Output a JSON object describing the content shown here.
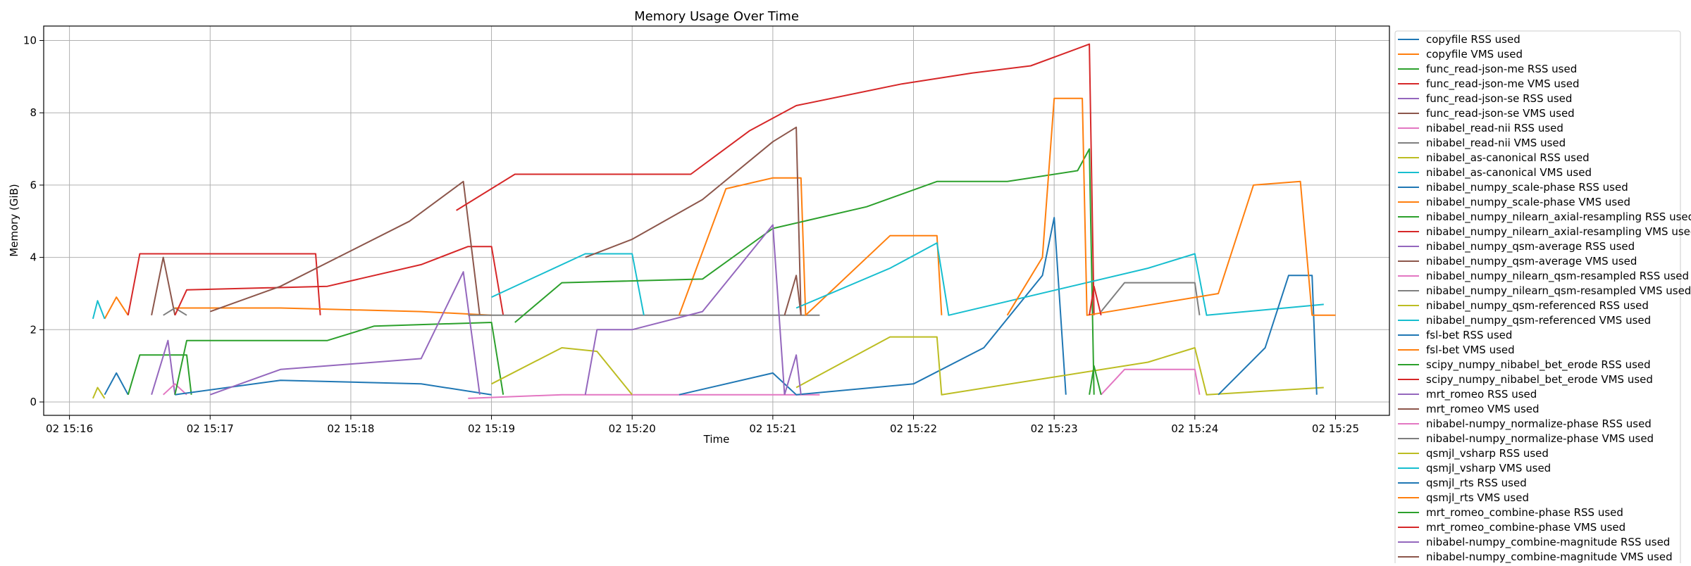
{
  "chart_data": {
    "type": "line",
    "title": "Memory Usage Over Time",
    "xlabel": "Time",
    "ylabel": "Memory (GiB)",
    "xlim": [
      "15:15:49",
      "15:25:23"
    ],
    "ylim": [
      -0.37,
      10.4
    ],
    "xticks": [
      "15:16",
      "15:17",
      "15:18",
      "15:19",
      "15:20",
      "15:21",
      "15:22",
      "15:23",
      "15:24",
      "15:25"
    ],
    "xtick_labels": [
      "02 15:16",
      "02 15:17",
      "02 15:18",
      "02 15:19",
      "02 15:20",
      "02 15:21",
      "02 15:22",
      "02 15:23",
      "02 15:24",
      "02 15:25"
    ],
    "yticks": [
      0,
      2,
      4,
      6,
      8,
      10
    ],
    "ytick_labels": [
      "0",
      "2",
      "4",
      "6",
      "8",
      "10"
    ],
    "grid": true,
    "legend_placement": "outside-right",
    "colors": [
      "#1f77b4",
      "#ff7f0e",
      "#2ca02c",
      "#d62728",
      "#9467bd",
      "#8c564b",
      "#e377c2",
      "#7f7f7f",
      "#bcbd22",
      "#17becf"
    ],
    "series": [
      {
        "name": "copyfile RSS used",
        "points": [
          [
            "15:16:15",
            0.2
          ],
          [
            "15:16:20",
            0.8
          ],
          [
            "15:16:25",
            0.2
          ]
        ]
      },
      {
        "name": "copyfile VMS used",
        "points": [
          [
            "15:16:15",
            2.3
          ],
          [
            "15:16:20",
            2.9
          ],
          [
            "15:16:25",
            2.4
          ]
        ]
      },
      {
        "name": "func_read-json-me RSS used",
        "points": [
          [
            "15:16:25",
            0.2
          ],
          [
            "15:16:30",
            1.3
          ],
          [
            "15:16:50",
            1.3
          ],
          [
            "15:16:52",
            0.2
          ]
        ]
      },
      {
        "name": "func_read-json-me VMS used",
        "points": [
          [
            "15:16:25",
            2.4
          ],
          [
            "15:16:30",
            4.1
          ],
          [
            "15:17:45",
            4.1
          ],
          [
            "15:17:47",
            2.4
          ]
        ]
      },
      {
        "name": "func_read-json-se RSS used",
        "points": [
          [
            "15:16:35",
            0.2
          ],
          [
            "15:16:42",
            1.7
          ],
          [
            "15:16:45",
            0.2
          ]
        ]
      },
      {
        "name": "func_read-json-se VMS used",
        "points": [
          [
            "15:16:35",
            2.4
          ],
          [
            "15:16:40",
            4.0
          ],
          [
            "15:16:45",
            2.4
          ]
        ]
      },
      {
        "name": "nibabel_read-nii RSS used",
        "points": [
          [
            "15:16:40",
            0.2
          ],
          [
            "15:16:45",
            0.5
          ],
          [
            "15:16:50",
            0.2
          ]
        ]
      },
      {
        "name": "nibabel_read-nii VMS used",
        "points": [
          [
            "15:16:40",
            2.4
          ],
          [
            "15:16:45",
            2.6
          ],
          [
            "15:16:50",
            2.4
          ]
        ]
      },
      {
        "name": "nibabel_as-canonical RSS used",
        "points": [
          [
            "15:16:10",
            0.1
          ],
          [
            "15:16:12",
            0.4
          ],
          [
            "15:16:15",
            0.1
          ]
        ]
      },
      {
        "name": "nibabel_as-canonical VMS used",
        "points": [
          [
            "15:16:10",
            2.3
          ],
          [
            "15:16:12",
            2.8
          ],
          [
            "15:16:15",
            2.3
          ]
        ]
      },
      {
        "name": "nibabel_numpy_scale-phase RSS used",
        "points": [
          [
            "15:16:45",
            0.2
          ],
          [
            "15:17:30",
            0.6
          ],
          [
            "15:18:30",
            0.5
          ],
          [
            "15:19:00",
            0.2
          ]
        ]
      },
      {
        "name": "nibabel_numpy_scale-phase VMS used",
        "points": [
          [
            "15:16:45",
            2.6
          ],
          [
            "15:17:30",
            2.6
          ],
          [
            "15:18:30",
            2.5
          ],
          [
            "15:19:00",
            2.4
          ]
        ]
      },
      {
        "name": "nibabel_numpy_nilearn_axial-resampling RSS used",
        "points": [
          [
            "15:16:45",
            0.2
          ],
          [
            "15:16:50",
            1.7
          ],
          [
            "15:17:50",
            1.7
          ],
          [
            "15:18:10",
            2.1
          ],
          [
            "15:19:00",
            2.2
          ],
          [
            "15:19:05",
            0.2
          ]
        ]
      },
      {
        "name": "nibabel_numpy_nilearn_axial-resampling VMS used",
        "points": [
          [
            "15:16:45",
            2.4
          ],
          [
            "15:16:50",
            3.1
          ],
          [
            "15:17:50",
            3.2
          ],
          [
            "15:18:30",
            3.8
          ],
          [
            "15:18:50",
            4.3
          ],
          [
            "15:19:00",
            4.3
          ],
          [
            "15:19:05",
            2.4
          ]
        ]
      },
      {
        "name": "nibabel_numpy_qsm-average RSS used",
        "points": [
          [
            "15:17:00",
            0.2
          ],
          [
            "15:17:30",
            0.9
          ],
          [
            "15:18:30",
            1.2
          ],
          [
            "15:18:48",
            3.6
          ],
          [
            "15:18:55",
            0.2
          ]
        ]
      },
      {
        "name": "nibabel_numpy_qsm-average VMS used",
        "points": [
          [
            "15:17:00",
            2.5
          ],
          [
            "15:17:30",
            3.2
          ],
          [
            "15:18:25",
            5.0
          ],
          [
            "15:18:48",
            6.1
          ],
          [
            "15:18:55",
            2.4
          ]
        ]
      },
      {
        "name": "nibabel_numpy_nilearn_qsm-resampled RSS used",
        "points": [
          [
            "15:18:50",
            0.1
          ],
          [
            "15:19:30",
            0.2
          ],
          [
            "15:21:20",
            0.2
          ]
        ]
      },
      {
        "name": "nibabel_numpy_nilearn_qsm-resampled VMS used",
        "points": [
          [
            "15:18:50",
            2.4
          ],
          [
            "15:21:20",
            2.4
          ]
        ]
      },
      {
        "name": "nibabel_numpy_qsm-referenced RSS used",
        "points": [
          [
            "15:19:00",
            0.5
          ],
          [
            "15:19:30",
            1.5
          ],
          [
            "15:19:45",
            1.4
          ],
          [
            "15:20:00",
            0.2
          ]
        ]
      },
      {
        "name": "nibabel_numpy_qsm-referenced VMS used",
        "points": [
          [
            "15:19:00",
            2.9
          ],
          [
            "15:19:40",
            4.1
          ],
          [
            "15:20:00",
            4.1
          ],
          [
            "15:20:05",
            2.4
          ]
        ]
      },
      {
        "name": "fsl-bet RSS used",
        "points": [
          [
            "15:20:20",
            0.2
          ],
          [
            "15:21:00",
            0.8
          ],
          [
            "15:21:10",
            0.2
          ],
          [
            "15:22:00",
            0.5
          ],
          [
            "15:22:30",
            1.5
          ],
          [
            "15:22:55",
            3.5
          ],
          [
            "15:23:00",
            5.1
          ],
          [
            "15:23:05",
            0.2
          ]
        ]
      },
      {
        "name": "fsl-bet VMS used",
        "points": [
          [
            "15:20:20",
            2.4
          ],
          [
            "15:20:40",
            5.9
          ],
          [
            "15:21:00",
            6.2
          ],
          [
            "15:21:12",
            6.2
          ],
          [
            "15:21:14",
            2.4
          ],
          [
            "15:21:50",
            4.6
          ],
          [
            "15:22:10",
            4.6
          ],
          [
            "15:22:12",
            2.4
          ]
        ]
      },
      {
        "name": "scipy_numpy_nibabel_bet_erode RSS used",
        "points": [
          [
            "15:19:10",
            2.2
          ],
          [
            "15:19:30",
            3.3
          ],
          [
            "15:20:30",
            3.4
          ],
          [
            "15:21:00",
            4.8
          ],
          [
            "15:21:40",
            5.4
          ],
          [
            "15:22:10",
            6.1
          ],
          [
            "15:22:40",
            6.1
          ],
          [
            "15:23:10",
            6.4
          ],
          [
            "15:23:15",
            7.0
          ],
          [
            "15:23:17",
            0.2
          ]
        ]
      },
      {
        "name": "scipy_numpy_nibabel_bet_erode VMS used",
        "points": [
          [
            "15:18:45",
            5.3
          ],
          [
            "15:19:10",
            6.3
          ],
          [
            "15:20:25",
            6.3
          ],
          [
            "15:20:50",
            7.5
          ],
          [
            "15:21:10",
            8.2
          ],
          [
            "15:21:55",
            8.8
          ],
          [
            "15:22:25",
            9.1
          ],
          [
            "15:22:50",
            9.3
          ],
          [
            "15:23:15",
            9.9
          ],
          [
            "15:23:17",
            2.4
          ]
        ]
      },
      {
        "name": "mrt_romeo RSS used",
        "points": [
          [
            "15:19:40",
            0.2
          ],
          [
            "15:19:45",
            2.0
          ],
          [
            "15:20:00",
            2.0
          ],
          [
            "15:20:30",
            2.5
          ],
          [
            "15:21:00",
            4.9
          ],
          [
            "15:21:05",
            0.2
          ]
        ]
      },
      {
        "name": "mrt_romeo VMS used",
        "points": [
          [
            "15:19:40",
            4.0
          ],
          [
            "15:20:00",
            4.5
          ],
          [
            "15:20:30",
            5.6
          ],
          [
            "15:21:00",
            7.2
          ],
          [
            "15:21:10",
            7.6
          ],
          [
            "15:21:12",
            2.4
          ]
        ]
      },
      {
        "name": "nibabel-numpy_normalize-phase RSS used",
        "points": [
          [
            "15:23:20",
            0.2
          ],
          [
            "15:23:30",
            0.9
          ],
          [
            "15:24:00",
            0.9
          ],
          [
            "15:24:02",
            0.2
          ]
        ]
      },
      {
        "name": "nibabel-numpy_normalize-phase VMS used",
        "points": [
          [
            "15:23:20",
            2.5
          ],
          [
            "15:23:30",
            3.3
          ],
          [
            "15:24:00",
            3.3
          ],
          [
            "15:24:02",
            2.4
          ]
        ]
      },
      {
        "name": "qsmjl_vsharp RSS used",
        "points": [
          [
            "15:21:10",
            0.4
          ],
          [
            "15:21:30",
            1.1
          ],
          [
            "15:21:50",
            1.8
          ],
          [
            "15:22:10",
            1.8
          ],
          [
            "15:22:12",
            0.2
          ],
          [
            "15:23:40",
            1.1
          ],
          [
            "15:24:00",
            1.5
          ],
          [
            "15:24:05",
            0.2
          ],
          [
            "15:24:55",
            0.4
          ]
        ]
      },
      {
        "name": "qsmjl_vsharp VMS used",
        "points": [
          [
            "15:21:10",
            2.6
          ],
          [
            "15:21:50",
            3.7
          ],
          [
            "15:22:10",
            4.4
          ],
          [
            "15:22:15",
            2.4
          ],
          [
            "15:23:40",
            3.7
          ],
          [
            "15:24:00",
            4.1
          ],
          [
            "15:24:05",
            2.4
          ],
          [
            "15:24:55",
            2.7
          ]
        ]
      },
      {
        "name": "qsmjl_rts RSS used",
        "points": [
          [
            "15:24:10",
            0.2
          ],
          [
            "15:24:30",
            1.5
          ],
          [
            "15:24:40",
            3.5
          ],
          [
            "15:24:50",
            3.5
          ],
          [
            "15:24:52",
            0.2
          ]
        ]
      },
      {
        "name": "qsmjl_rts VMS used",
        "points": [
          [
            "15:22:40",
            2.4
          ],
          [
            "15:22:55",
            4.0
          ],
          [
            "15:23:00",
            8.4
          ],
          [
            "15:23:12",
            8.4
          ],
          [
            "15:23:14",
            2.4
          ],
          [
            "15:24:10",
            3.0
          ],
          [
            "15:24:25",
            6.0
          ],
          [
            "15:24:45",
            6.1
          ],
          [
            "15:24:50",
            2.4
          ],
          [
            "15:25:00",
            2.4
          ]
        ]
      },
      {
        "name": "mrt_romeo_combine-phase RSS used",
        "points": [
          [
            "15:23:15",
            0.2
          ],
          [
            "15:23:17",
            1.0
          ],
          [
            "15:23:20",
            0.2
          ]
        ]
      },
      {
        "name": "mrt_romeo_combine-phase VMS used",
        "points": [
          [
            "15:23:15",
            2.4
          ],
          [
            "15:23:17",
            3.2
          ],
          [
            "15:23:20",
            2.4
          ]
        ]
      },
      {
        "name": "nibabel-numpy_combine-magnitude RSS used",
        "points": [
          [
            "15:21:05",
            0.2
          ],
          [
            "15:21:10",
            1.3
          ],
          [
            "15:21:12",
            0.2
          ]
        ]
      },
      {
        "name": "nibabel-numpy_combine-magnitude VMS used",
        "points": [
          [
            "15:21:05",
            2.4
          ],
          [
            "15:21:10",
            3.5
          ],
          [
            "15:21:12",
            2.4
          ]
        ]
      }
    ]
  }
}
